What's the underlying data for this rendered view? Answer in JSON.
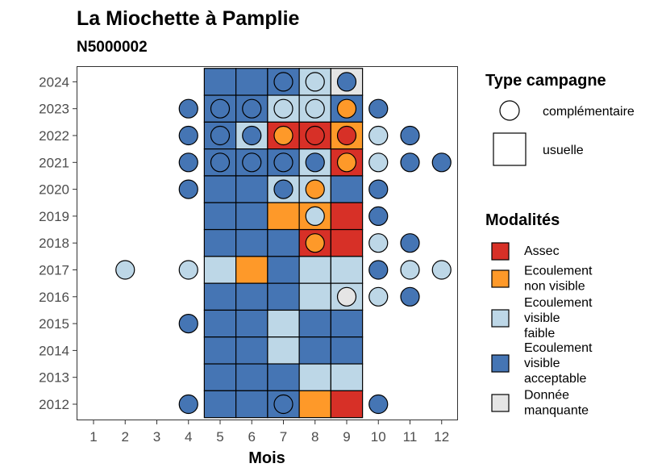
{
  "chart_data": {
    "type": "heatmap",
    "title": "La Miochette à Pamplie",
    "subtitle": "N5000002",
    "xlabel": "Mois",
    "ylabel": "",
    "x_ticks": [
      "1",
      "2",
      "3",
      "4",
      "5",
      "6",
      "7",
      "8",
      "9",
      "10",
      "11",
      "12"
    ],
    "y_ticks": [
      "2012",
      "2013",
      "2014",
      "2015",
      "2016",
      "2017",
      "2018",
      "2019",
      "2020",
      "2021",
      "2022",
      "2023",
      "2024"
    ],
    "colors": {
      "Assec": "#d73027",
      "Ecoulement non visible": "#fe9929",
      "Ecoulement visible faible": "#bdd7e7",
      "Ecoulement visible acceptable": "#4575b4",
      "Donnée manquante": "#e5e5e5"
    },
    "usuelle": [
      {
        "year": 2024,
        "month": 5,
        "modalite": "Ecoulement visible acceptable"
      },
      {
        "year": 2024,
        "month": 6,
        "modalite": "Ecoulement visible acceptable"
      },
      {
        "year": 2024,
        "month": 7,
        "modalite": "Ecoulement visible acceptable"
      },
      {
        "year": 2024,
        "month": 8,
        "modalite": "Ecoulement visible faible"
      },
      {
        "year": 2024,
        "month": 9,
        "modalite": "Donnée manquante"
      },
      {
        "year": 2023,
        "month": 5,
        "modalite": "Ecoulement visible acceptable"
      },
      {
        "year": 2023,
        "month": 6,
        "modalite": "Ecoulement visible acceptable"
      },
      {
        "year": 2023,
        "month": 7,
        "modalite": "Ecoulement visible faible"
      },
      {
        "year": 2023,
        "month": 8,
        "modalite": "Ecoulement visible faible"
      },
      {
        "year": 2023,
        "month": 9,
        "modalite": "Ecoulement visible acceptable"
      },
      {
        "year": 2022,
        "month": 5,
        "modalite": "Ecoulement visible acceptable"
      },
      {
        "year": 2022,
        "month": 6,
        "modalite": "Ecoulement visible faible"
      },
      {
        "year": 2022,
        "month": 7,
        "modalite": "Assec"
      },
      {
        "year": 2022,
        "month": 8,
        "modalite": "Assec"
      },
      {
        "year": 2022,
        "month": 9,
        "modalite": "Ecoulement non visible"
      },
      {
        "year": 2021,
        "month": 5,
        "modalite": "Ecoulement visible acceptable"
      },
      {
        "year": 2021,
        "month": 6,
        "modalite": "Ecoulement visible acceptable"
      },
      {
        "year": 2021,
        "month": 7,
        "modalite": "Ecoulement visible acceptable"
      },
      {
        "year": 2021,
        "month": 8,
        "modalite": "Ecoulement visible faible"
      },
      {
        "year": 2021,
        "month": 9,
        "modalite": "Assec"
      },
      {
        "year": 2020,
        "month": 5,
        "modalite": "Ecoulement visible acceptable"
      },
      {
        "year": 2020,
        "month": 6,
        "modalite": "Ecoulement visible acceptable"
      },
      {
        "year": 2020,
        "month": 7,
        "modalite": "Ecoulement visible faible"
      },
      {
        "year": 2020,
        "month": 8,
        "modalite": "Ecoulement visible faible"
      },
      {
        "year": 2020,
        "month": 9,
        "modalite": "Ecoulement visible acceptable"
      },
      {
        "year": 2019,
        "month": 5,
        "modalite": "Ecoulement visible acceptable"
      },
      {
        "year": 2019,
        "month": 6,
        "modalite": "Ecoulement visible acceptable"
      },
      {
        "year": 2019,
        "month": 7,
        "modalite": "Ecoulement non visible"
      },
      {
        "year": 2019,
        "month": 8,
        "modalite": "Ecoulement non visible"
      },
      {
        "year": 2019,
        "month": 9,
        "modalite": "Assec"
      },
      {
        "year": 2018,
        "month": 5,
        "modalite": "Ecoulement visible acceptable"
      },
      {
        "year": 2018,
        "month": 6,
        "modalite": "Ecoulement visible acceptable"
      },
      {
        "year": 2018,
        "month": 7,
        "modalite": "Ecoulement visible acceptable"
      },
      {
        "year": 2018,
        "month": 8,
        "modalite": "Assec"
      },
      {
        "year": 2018,
        "month": 9,
        "modalite": "Assec"
      },
      {
        "year": 2017,
        "month": 5,
        "modalite": "Ecoulement visible faible"
      },
      {
        "year": 2017,
        "month": 6,
        "modalite": "Ecoulement non visible"
      },
      {
        "year": 2017,
        "month": 7,
        "modalite": "Ecoulement visible acceptable"
      },
      {
        "year": 2017,
        "month": 8,
        "modalite": "Ecoulement visible faible"
      },
      {
        "year": 2017,
        "month": 9,
        "modalite": "Ecoulement visible faible"
      },
      {
        "year": 2016,
        "month": 5,
        "modalite": "Ecoulement visible acceptable"
      },
      {
        "year": 2016,
        "month": 6,
        "modalite": "Ecoulement visible acceptable"
      },
      {
        "year": 2016,
        "month": 7,
        "modalite": "Ecoulement visible acceptable"
      },
      {
        "year": 2016,
        "month": 8,
        "modalite": "Ecoulement visible faible"
      },
      {
        "year": 2016,
        "month": 9,
        "modalite": "Ecoulement visible faible"
      },
      {
        "year": 2015,
        "month": 5,
        "modalite": "Ecoulement visible acceptable"
      },
      {
        "year": 2015,
        "month": 6,
        "modalite": "Ecoulement visible acceptable"
      },
      {
        "year": 2015,
        "month": 7,
        "modalite": "Ecoulement visible faible"
      },
      {
        "year": 2015,
        "month": 8,
        "modalite": "Ecoulement visible acceptable"
      },
      {
        "year": 2015,
        "month": 9,
        "modalite": "Ecoulement visible acceptable"
      },
      {
        "year": 2014,
        "month": 5,
        "modalite": "Ecoulement visible acceptable"
      },
      {
        "year": 2014,
        "month": 6,
        "modalite": "Ecoulement visible acceptable"
      },
      {
        "year": 2014,
        "month": 7,
        "modalite": "Ecoulement visible faible"
      },
      {
        "year": 2014,
        "month": 8,
        "modalite": "Ecoulement visible acceptable"
      },
      {
        "year": 2014,
        "month": 9,
        "modalite": "Ecoulement visible acceptable"
      },
      {
        "year": 2013,
        "month": 5,
        "modalite": "Ecoulement visible acceptable"
      },
      {
        "year": 2013,
        "month": 6,
        "modalite": "Ecoulement visible acceptable"
      },
      {
        "year": 2013,
        "month": 7,
        "modalite": "Ecoulement visible acceptable"
      },
      {
        "year": 2013,
        "month": 8,
        "modalite": "Ecoulement visible faible"
      },
      {
        "year": 2013,
        "month": 9,
        "modalite": "Ecoulement visible faible"
      },
      {
        "year": 2012,
        "month": 5,
        "modalite": "Ecoulement visible acceptable"
      },
      {
        "year": 2012,
        "month": 6,
        "modalite": "Ecoulement visible acceptable"
      },
      {
        "year": 2012,
        "month": 7,
        "modalite": "Ecoulement visible acceptable"
      },
      {
        "year": 2012,
        "month": 8,
        "modalite": "Ecoulement non visible"
      },
      {
        "year": 2012,
        "month": 9,
        "modalite": "Assec"
      }
    ],
    "complementaire": [
      {
        "year": 2024,
        "month": 7,
        "modalite": "Ecoulement visible acceptable"
      },
      {
        "year": 2024,
        "month": 8,
        "modalite": "Ecoulement visible faible"
      },
      {
        "year": 2024,
        "month": 9,
        "modalite": "Ecoulement visible acceptable"
      },
      {
        "year": 2023,
        "month": 4,
        "modalite": "Ecoulement visible acceptable"
      },
      {
        "year": 2023,
        "month": 5,
        "modalite": "Ecoulement visible acceptable"
      },
      {
        "year": 2023,
        "month": 6,
        "modalite": "Ecoulement visible acceptable"
      },
      {
        "year": 2023,
        "month": 7,
        "modalite": "Ecoulement visible faible"
      },
      {
        "year": 2023,
        "month": 8,
        "modalite": "Ecoulement visible faible"
      },
      {
        "year": 2023,
        "month": 9,
        "modalite": "Ecoulement non visible"
      },
      {
        "year": 2023,
        "month": 10,
        "modalite": "Ecoulement visible acceptable"
      },
      {
        "year": 2022,
        "month": 4,
        "modalite": "Ecoulement visible acceptable"
      },
      {
        "year": 2022,
        "month": 5,
        "modalite": "Ecoulement visible acceptable"
      },
      {
        "year": 2022,
        "month": 6,
        "modalite": "Ecoulement visible acceptable"
      },
      {
        "year": 2022,
        "month": 7,
        "modalite": "Ecoulement non visible"
      },
      {
        "year": 2022,
        "month": 8,
        "modalite": "Assec"
      },
      {
        "year": 2022,
        "month": 9,
        "modalite": "Assec"
      },
      {
        "year": 2022,
        "month": 10,
        "modalite": "Ecoulement visible faible"
      },
      {
        "year": 2022,
        "month": 11,
        "modalite": "Ecoulement visible acceptable"
      },
      {
        "year": 2021,
        "month": 4,
        "modalite": "Ecoulement visible acceptable"
      },
      {
        "year": 2021,
        "month": 5,
        "modalite": "Ecoulement visible acceptable"
      },
      {
        "year": 2021,
        "month": 6,
        "modalite": "Ecoulement visible acceptable"
      },
      {
        "year": 2021,
        "month": 7,
        "modalite": "Ecoulement visible acceptable"
      },
      {
        "year": 2021,
        "month": 8,
        "modalite": "Ecoulement visible acceptable"
      },
      {
        "year": 2021,
        "month": 9,
        "modalite": "Ecoulement non visible"
      },
      {
        "year": 2021,
        "month": 10,
        "modalite": "Ecoulement visible faible"
      },
      {
        "year": 2021,
        "month": 11,
        "modalite": "Ecoulement visible acceptable"
      },
      {
        "year": 2021,
        "month": 12,
        "modalite": "Ecoulement visible acceptable"
      },
      {
        "year": 2020,
        "month": 4,
        "modalite": "Ecoulement visible acceptable"
      },
      {
        "year": 2020,
        "month": 7,
        "modalite": "Ecoulement visible acceptable"
      },
      {
        "year": 2020,
        "month": 8,
        "modalite": "Ecoulement non visible"
      },
      {
        "year": 2020,
        "month": 10,
        "modalite": "Ecoulement visible acceptable"
      },
      {
        "year": 2019,
        "month": 8,
        "modalite": "Ecoulement visible faible"
      },
      {
        "year": 2019,
        "month": 10,
        "modalite": "Ecoulement visible acceptable"
      },
      {
        "year": 2018,
        "month": 8,
        "modalite": "Ecoulement non visible"
      },
      {
        "year": 2018,
        "month": 10,
        "modalite": "Ecoulement visible faible"
      },
      {
        "year": 2018,
        "month": 11,
        "modalite": "Ecoulement visible acceptable"
      },
      {
        "year": 2017,
        "month": 2,
        "modalite": "Ecoulement visible faible"
      },
      {
        "year": 2017,
        "month": 4,
        "modalite": "Ecoulement visible faible"
      },
      {
        "year": 2017,
        "month": 10,
        "modalite": "Ecoulement visible acceptable"
      },
      {
        "year": 2017,
        "month": 11,
        "modalite": "Ecoulement visible faible"
      },
      {
        "year": 2017,
        "month": 12,
        "modalite": "Ecoulement visible faible"
      },
      {
        "year": 2016,
        "month": 9,
        "modalite": "Donnée manquante"
      },
      {
        "year": 2016,
        "month": 10,
        "modalite": "Ecoulement visible faible"
      },
      {
        "year": 2016,
        "month": 11,
        "modalite": "Ecoulement visible acceptable"
      },
      {
        "year": 2015,
        "month": 4,
        "modalite": "Ecoulement visible acceptable"
      },
      {
        "year": 2012,
        "month": 4,
        "modalite": "Ecoulement visible acceptable"
      },
      {
        "year": 2012,
        "month": 7,
        "modalite": "Ecoulement visible acceptable"
      },
      {
        "year": 2012,
        "month": 10,
        "modalite": "Ecoulement visible acceptable"
      }
    ],
    "legend": {
      "type_title": "Type campagne",
      "type_items": [
        "complémentaire",
        "usuelle"
      ],
      "modalites_title": "Modalités",
      "modalites_items": [
        {
          "key": "Assec",
          "lines": [
            "Assec"
          ]
        },
        {
          "key": "Ecoulement non visible",
          "lines": [
            "Ecoulement",
            "non visible"
          ]
        },
        {
          "key": "Ecoulement visible faible",
          "lines": [
            "Ecoulement",
            "visible",
            "faible"
          ]
        },
        {
          "key": "Ecoulement visible acceptable",
          "lines": [
            "Ecoulement",
            "visible",
            "acceptable"
          ]
        },
        {
          "key": "Donnée manquante",
          "lines": [
            "Donnée",
            "manquante"
          ]
        }
      ]
    }
  }
}
